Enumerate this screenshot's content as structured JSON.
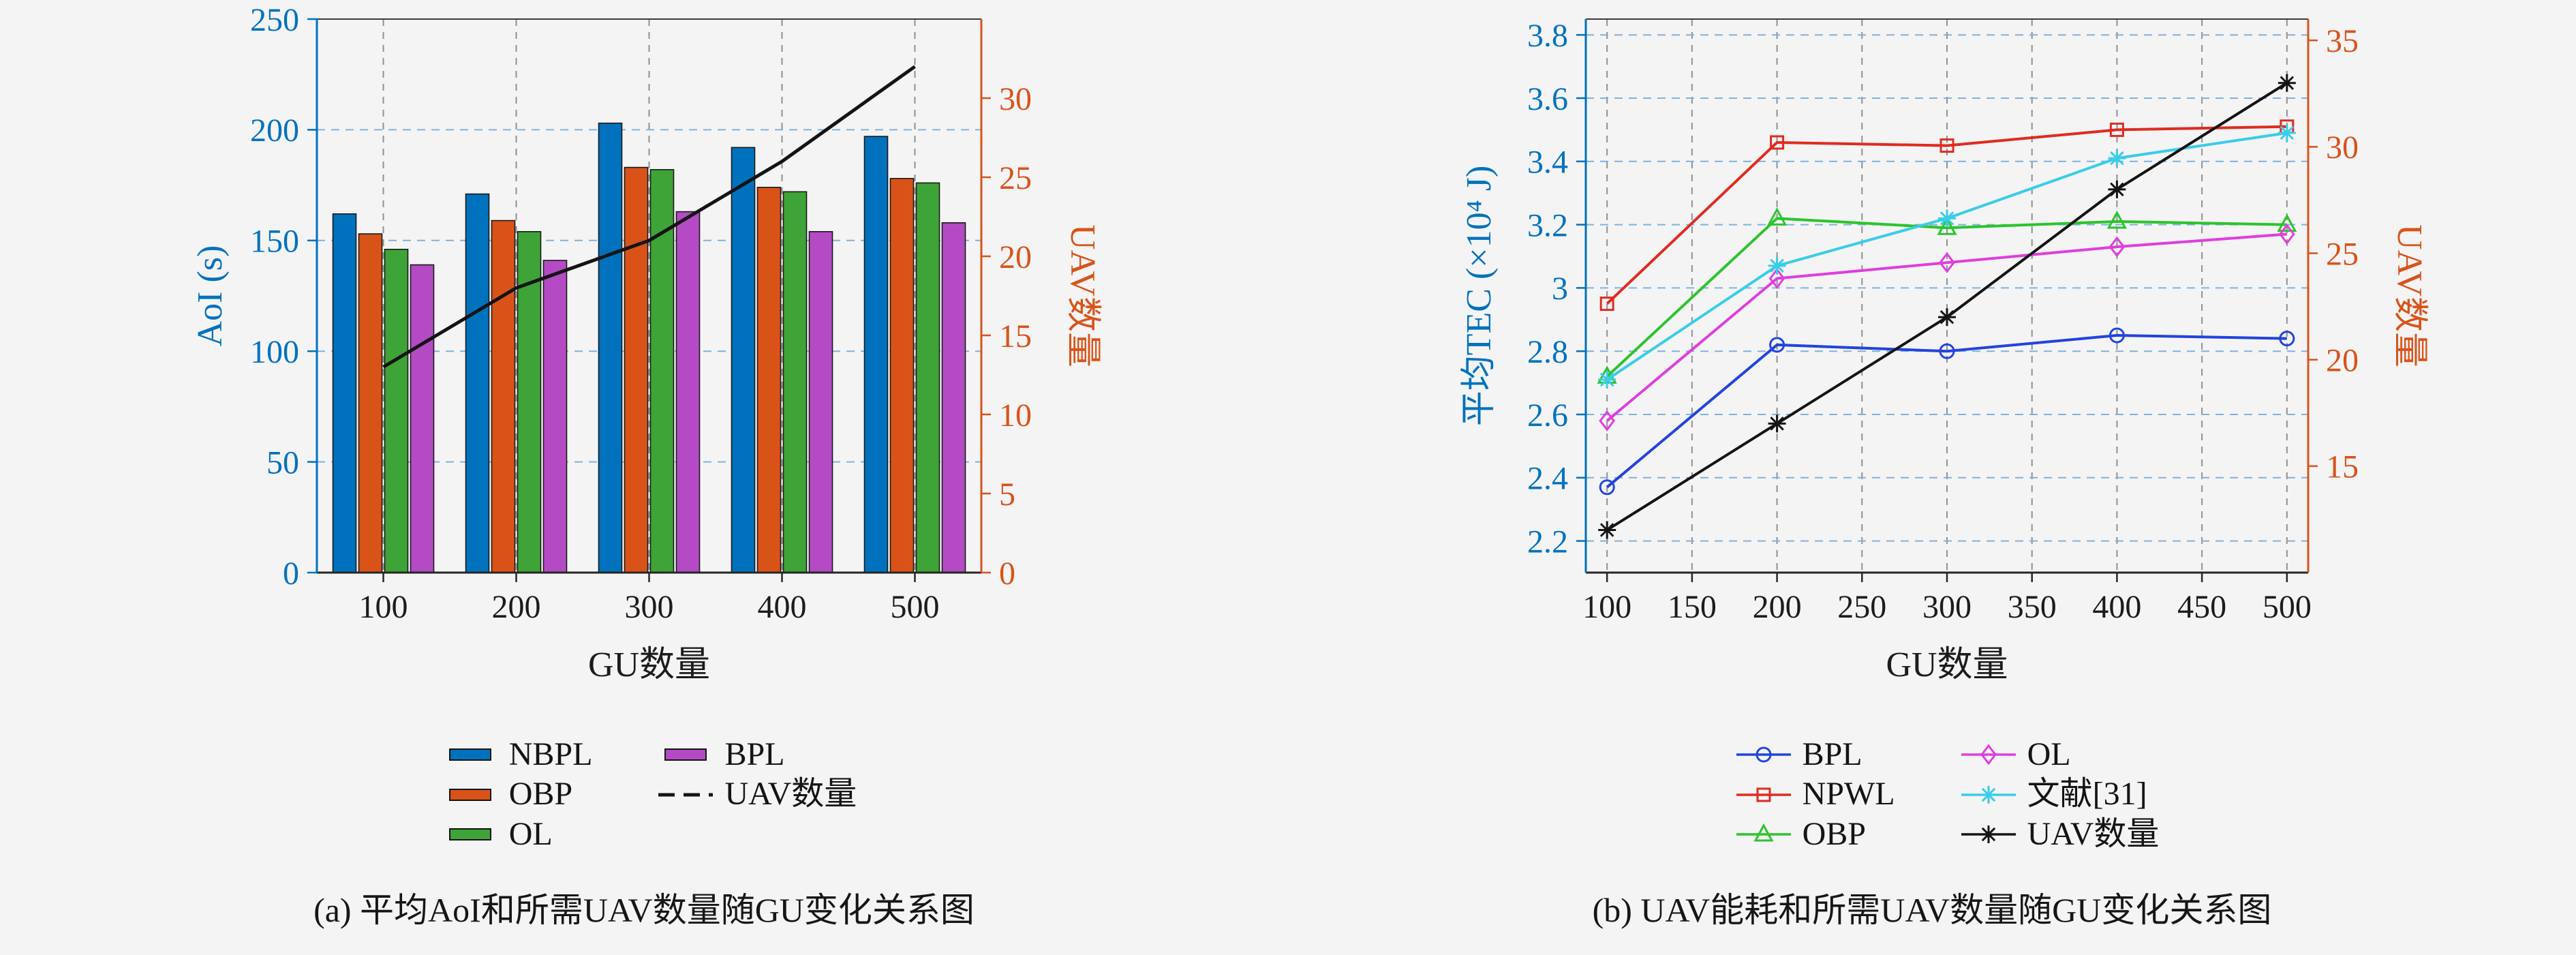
{
  "page": {
    "background": "#f4f4f5"
  },
  "chart_data": [
    {
      "id": "a",
      "type": "bar+line",
      "caption": "(a) 平均AoI和所需UAV数量随GU变化关系图",
      "xlabel": "GU数量",
      "ylabel_left": "AoI (s)",
      "ylabel_right": "UAV数量",
      "categories": [
        "100",
        "200",
        "300",
        "400",
        "500"
      ],
      "bar_series": [
        {
          "name": "NBPL",
          "color": "#0072BD",
          "values": [
            162,
            171,
            203,
            192,
            197
          ]
        },
        {
          "name": "OBP",
          "color": "#D95319",
          "values": [
            153,
            159,
            183,
            174,
            178
          ]
        },
        {
          "name": "OL",
          "color": "#3EA437",
          "values": [
            146,
            154,
            182,
            172,
            176
          ]
        },
        {
          "name": "BPL",
          "color": "#B44BC4",
          "values": [
            139,
            141,
            163,
            154,
            158
          ]
        }
      ],
      "line_series": [
        {
          "name": "UAV数量",
          "color": "#141414",
          "axis": "right",
          "style": "solid",
          "values": [
            13,
            18,
            21,
            26,
            32
          ]
        }
      ],
      "axes": {
        "left": {
          "color": "#0072BD",
          "min": 0,
          "max": 250,
          "tick_values": [
            0,
            50,
            100,
            150,
            200,
            250
          ],
          "tick_labels": [
            "0",
            "50",
            "100",
            "150",
            "200",
            "250"
          ]
        },
        "right": {
          "color": "#D95319",
          "min": 0,
          "max": 35,
          "tick_values": [
            0,
            5,
            10,
            15,
            20,
            25,
            30
          ],
          "tick_labels": [
            "0",
            "5",
            "10",
            "15",
            "20",
            "25",
            "30"
          ]
        }
      },
      "grid": {
        "horizontal": "dashed-blue",
        "vertical": "dashed-gray"
      },
      "legend_columns": [
        [
          "bar:0",
          "bar:1",
          "bar:2"
        ],
        [
          "bar:3",
          "line:0"
        ]
      ]
    },
    {
      "id": "b",
      "type": "line",
      "caption": "(b) UAV能耗和所需UAV数量随GU变化关系图",
      "xlabel": "GU数量",
      "ylabel_left": "平均TEC (×10⁴ J)",
      "ylabel_right": "UAV数量",
      "x": [
        100,
        200,
        300,
        400,
        500
      ],
      "series": [
        {
          "name": "BPL",
          "color": "#2244DD",
          "marker": "circle",
          "axis": "left",
          "values": [
            2.37,
            2.82,
            2.8,
            2.85,
            2.84
          ]
        },
        {
          "name": "NPWL",
          "color": "#E02B20",
          "marker": "square",
          "axis": "left",
          "values": [
            2.95,
            3.46,
            3.45,
            3.5,
            3.51
          ]
        },
        {
          "name": "OBP",
          "color": "#2CC42C",
          "marker": "triangle",
          "axis": "left",
          "values": [
            2.72,
            3.22,
            3.19,
            3.21,
            3.2
          ]
        },
        {
          "name": "OL",
          "color": "#DE3EDE",
          "marker": "diamond",
          "axis": "left",
          "values": [
            2.58,
            3.03,
            3.08,
            3.13,
            3.17
          ]
        },
        {
          "name": "文献[31]",
          "color": "#3ACDE8",
          "marker": "star",
          "axis": "left",
          "values": [
            2.71,
            3.07,
            3.22,
            3.41,
            3.49
          ]
        },
        {
          "name": "UAV数量",
          "color": "#141414",
          "marker": "star",
          "axis": "right",
          "values": [
            12,
            17,
            22,
            28,
            33
          ]
        }
      ],
      "axes": {
        "left": {
          "color": "#0072BD",
          "min": 2.1,
          "max": 3.85,
          "tick_values": [
            2.2,
            2.4,
            2.6,
            2.8,
            3,
            3.2,
            3.4,
            3.6,
            3.8
          ],
          "tick_labels": [
            "2.2",
            "2.4",
            "2.6",
            "2.8",
            "3",
            "3.2",
            "3.4",
            "3.6",
            "3.8"
          ]
        },
        "right": {
          "color": "#D95319",
          "min": 10,
          "max": 36,
          "tick_values": [
            15,
            20,
            25,
            30,
            35
          ],
          "tick_labels": [
            "15",
            "20",
            "25",
            "30",
            "35"
          ]
        },
        "x": {
          "min": 87.5,
          "max": 512.5,
          "tick_values": [
            100,
            150,
            200,
            250,
            300,
            350,
            400,
            450,
            500
          ],
          "tick_labels": [
            "100",
            "150",
            "200",
            "250",
            "300",
            "350",
            "400",
            "450",
            "500"
          ]
        }
      },
      "grid": {
        "horizontal": "dashed-blue",
        "vertical": "dashed-gray"
      },
      "legend_columns": [
        [
          0,
          1,
          2
        ],
        [
          3,
          4,
          5
        ]
      ]
    }
  ]
}
